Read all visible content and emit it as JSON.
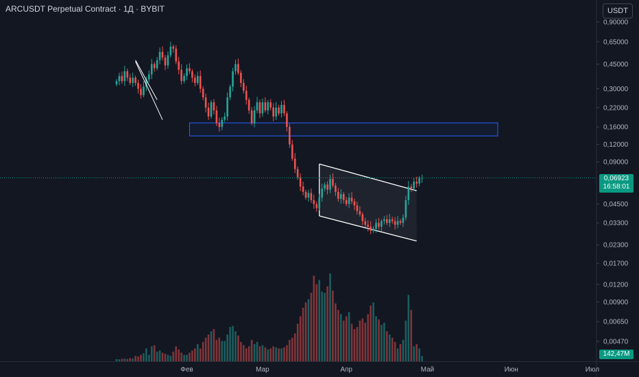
{
  "header": {
    "title": "ARCUSDT Perpetual Contract · 1Д · BYBIT",
    "currency_button": "USDT"
  },
  "price_tag": {
    "price": "0,06923",
    "countdown": "16:58:01"
  },
  "volume_tag": "142,47M",
  "colors": {
    "background": "#131722",
    "up": "#26a69a",
    "down": "#ef5350",
    "channel_fill": "#2a2e39",
    "zone_border": "#2962ff",
    "last_price": "#089981"
  },
  "chart_data": {
    "type": "candlestick",
    "scale": "log",
    "y_ticks": [
      "0,90000",
      "0,65000",
      "0,45000",
      "0,30000",
      "0,22000",
      "0,16000",
      "0,12000",
      "0,09000",
      "0,06923",
      "0,04500",
      "0,03300",
      "0,02300",
      "0,01700",
      "0,01200",
      "0,00900",
      "0,00650",
      "0,00470"
    ],
    "y_tick_values": [
      0.9,
      0.65,
      0.45,
      0.3,
      0.22,
      0.16,
      0.12,
      0.09,
      0.06923,
      0.045,
      0.033,
      0.023,
      0.017,
      0.012,
      0.009,
      0.0065,
      0.0047
    ],
    "x_ticks": [
      "Фев",
      "Мар",
      "Апр",
      "Май",
      "Июн",
      "Июл"
    ],
    "x_tick_dates": [
      "2025-02-01",
      "2025-03-01",
      "2025-04-01",
      "2025-05-01",
      "2025-06-01",
      "2025-07-01"
    ],
    "last_price": 0.06923,
    "close_series": {
      "start_date": "2025-01-06",
      "interval": "1D",
      "values": [
        0.34,
        0.37,
        0.34,
        0.4,
        0.36,
        0.33,
        0.36,
        0.33,
        0.3,
        0.27,
        0.31,
        0.35,
        0.38,
        0.45,
        0.42,
        0.48,
        0.55,
        0.5,
        0.44,
        0.52,
        0.6,
        0.58,
        0.47,
        0.41,
        0.34,
        0.37,
        0.42,
        0.4,
        0.36,
        0.33,
        0.37,
        0.3,
        0.26,
        0.22,
        0.19,
        0.24,
        0.21,
        0.17,
        0.16,
        0.18,
        0.19,
        0.26,
        0.31,
        0.4,
        0.45,
        0.39,
        0.33,
        0.29,
        0.25,
        0.21,
        0.17,
        0.21,
        0.24,
        0.2,
        0.24,
        0.21,
        0.24,
        0.22,
        0.19,
        0.22,
        0.2,
        0.23,
        0.2,
        0.16,
        0.12,
        0.095,
        0.08,
        0.07,
        0.06,
        0.055,
        0.05,
        0.054,
        0.048,
        0.045,
        0.042,
        0.05,
        0.058,
        0.062,
        0.057,
        0.068,
        0.061,
        0.055,
        0.049,
        0.053,
        0.048,
        0.045,
        0.05,
        0.047,
        0.044,
        0.04,
        0.038,
        0.034,
        0.032,
        0.031,
        0.029,
        0.03,
        0.033,
        0.031,
        0.034,
        0.035,
        0.033,
        0.035,
        0.034,
        0.032,
        0.034,
        0.033,
        0.036,
        0.048,
        0.06,
        0.058,
        0.065,
        0.063,
        0.069,
        0.0692
      ]
    },
    "volume_series": {
      "unit": "USDT",
      "values": [
        2,
        1.8,
        2.2,
        2.5,
        2,
        3,
        2.6,
        5,
        4.5,
        6,
        7.5,
        12,
        6,
        14,
        15,
        9,
        10,
        8,
        7,
        6,
        5,
        9,
        14,
        11,
        8,
        6,
        6,
        8,
        10,
        12,
        16,
        12,
        18,
        22,
        25,
        28,
        30,
        20,
        22,
        19,
        19,
        25,
        32,
        33,
        28,
        24,
        18,
        15,
        12,
        14,
        20,
        16,
        18,
        14,
        15,
        13,
        11,
        12,
        14,
        13,
        12,
        12,
        13,
        15,
        20,
        22,
        26,
        35,
        42,
        50,
        55,
        58,
        64,
        80,
        72,
        76,
        65,
        64,
        70,
        82,
        66,
        54,
        48,
        44,
        38,
        42,
        46,
        35,
        30,
        32,
        38,
        40,
        36,
        44,
        52,
        55,
        42,
        39,
        34,
        36,
        28,
        25,
        22,
        18,
        12,
        16,
        20,
        38,
        62,
        48,
        14,
        16,
        12,
        5
      ]
    },
    "annotations": {
      "zone": {
        "date_from": "2025-02-02",
        "date_to": "2025-05-27",
        "price_low": 0.138,
        "price_high": 0.171
      },
      "channel_upper": [
        [
          "2025-03-22",
          0.087
        ],
        [
          "2025-04-27",
          0.056
        ]
      ],
      "channel_lower": [
        [
          "2025-03-22",
          0.037
        ],
        [
          "2025-04-27",
          0.0245
        ]
      ],
      "wedge_line_1": [
        [
          "2025-01-13",
          0.47
        ],
        [
          "2025-01-23",
          0.18
        ]
      ],
      "wedge_line_2": [
        [
          "2025-01-13",
          0.48
        ],
        [
          "2025-01-21",
          0.25
        ]
      ]
    }
  }
}
